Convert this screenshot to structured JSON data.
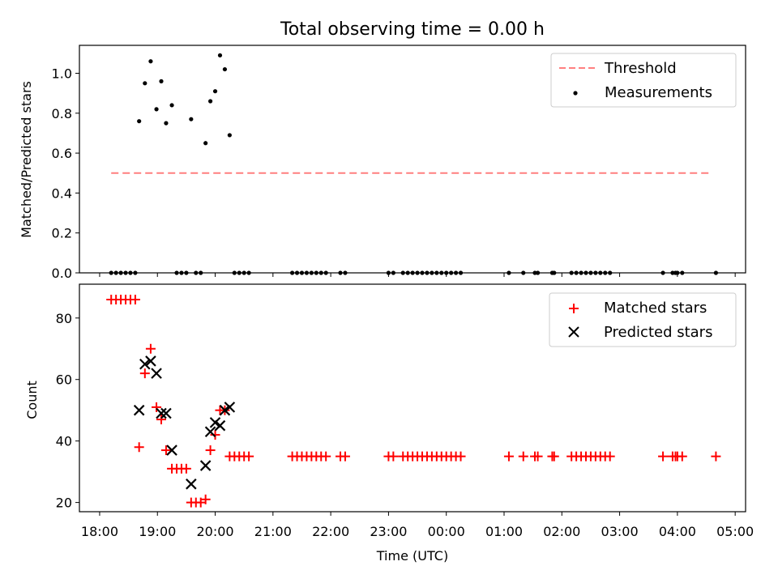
{
  "chart_data": [
    {
      "type": "scatter",
      "title": "Total observing time = 0.00 h",
      "xlabel": "",
      "ylabel": "Matched/Predicted stars",
      "xlim": [
        "18:00",
        "05:00"
      ],
      "ylim": [
        0,
        1.14
      ],
      "yticks": [
        "0.0",
        "0.2",
        "0.4",
        "0.6",
        "0.8",
        "1.0"
      ],
      "legend_position": "top-right",
      "legend": [
        "Threshold",
        "Measurements"
      ],
      "threshold": {
        "name": "Threshold",
        "y": 0.5,
        "x_range": [
          "18:12",
          "04:36"
        ],
        "color": "#ff7f7f",
        "style": "dashed"
      },
      "series": [
        {
          "name": "Measurements",
          "color": "#000000",
          "points": [
            [
              "18:12",
              0
            ],
            [
              "18:17",
              0
            ],
            [
              "18:22",
              0
            ],
            [
              "18:27",
              0
            ],
            [
              "18:32",
              0
            ],
            [
              "18:37",
              0
            ],
            [
              "18:41",
              0.76
            ],
            [
              "18:47",
              0.95
            ],
            [
              "18:53",
              1.06
            ],
            [
              "18:59",
              0.82
            ],
            [
              "19:04",
              0.96
            ],
            [
              "19:09",
              0.75
            ],
            [
              "19:15",
              0.84
            ],
            [
              "19:20",
              0
            ],
            [
              "19:25",
              0
            ],
            [
              "19:30",
              0
            ],
            [
              "19:35",
              0.77
            ],
            [
              "19:40",
              0
            ],
            [
              "19:45",
              0
            ],
            [
              "19:50",
              0.65
            ],
            [
              "19:55",
              0.86
            ],
            [
              "20:00",
              0.91
            ],
            [
              "20:05",
              1.09
            ],
            [
              "20:10",
              1.02
            ],
            [
              "20:15",
              0.69
            ],
            [
              "20:20",
              0
            ],
            [
              "20:25",
              0
            ],
            [
              "20:30",
              0
            ],
            [
              "20:35",
              0
            ],
            [
              "21:20",
              0
            ],
            [
              "21:25",
              0
            ],
            [
              "21:30",
              0
            ],
            [
              "21:35",
              0
            ],
            [
              "21:40",
              0
            ],
            [
              "21:45",
              0
            ],
            [
              "21:50",
              0
            ],
            [
              "21:55",
              0
            ],
            [
              "22:10",
              0
            ],
            [
              "22:15",
              0
            ],
            [
              "23:00",
              0
            ],
            [
              "23:05",
              0
            ],
            [
              "23:15",
              0
            ],
            [
              "23:20",
              0
            ],
            [
              "23:25",
              0
            ],
            [
              "23:30",
              0
            ],
            [
              "23:35",
              0
            ],
            [
              "23:40",
              0
            ],
            [
              "23:45",
              0
            ],
            [
              "23:50",
              0
            ],
            [
              "23:55",
              0
            ],
            [
              "00:00",
              0
            ],
            [
              "00:05",
              0
            ],
            [
              "00:10",
              0
            ],
            [
              "00:15",
              0
            ],
            [
              "01:05",
              0
            ],
            [
              "01:20",
              0
            ],
            [
              "01:32",
              0
            ],
            [
              "01:35",
              0
            ],
            [
              "01:50",
              0
            ],
            [
              "01:52",
              0
            ],
            [
              "02:10",
              0
            ],
            [
              "02:15",
              0
            ],
            [
              "02:20",
              0
            ],
            [
              "02:25",
              0
            ],
            [
              "02:30",
              0
            ],
            [
              "02:35",
              0
            ],
            [
              "02:40",
              0
            ],
            [
              "02:45",
              0
            ],
            [
              "02:50",
              0
            ],
            [
              "03:45",
              0
            ],
            [
              "03:55",
              0
            ],
            [
              "03:58",
              0
            ],
            [
              "04:00",
              0
            ],
            [
              "04:05",
              0
            ],
            [
              "04:40",
              0
            ]
          ]
        }
      ]
    },
    {
      "type": "scatter",
      "title": "",
      "xlabel": "Time (UTC)",
      "ylabel": "Count",
      "xlim": [
        "18:00",
        "05:00"
      ],
      "ylim": [
        17,
        91
      ],
      "yticks": [
        "20",
        "40",
        "60",
        "80"
      ],
      "xticks": [
        "18:00",
        "19:00",
        "20:00",
        "21:00",
        "22:00",
        "23:00",
        "00:00",
        "01:00",
        "02:00",
        "03:00",
        "04:00",
        "05:00"
      ],
      "legend_position": "top-right",
      "legend": [
        "Matched stars",
        "Predicted stars"
      ],
      "series": [
        {
          "name": "Matched stars",
          "marker": "plus",
          "color": "#ff0000",
          "points": [
            [
              "18:12",
              86
            ],
            [
              "18:17",
              86
            ],
            [
              "18:22",
              86
            ],
            [
              "18:27",
              86
            ],
            [
              "18:32",
              86
            ],
            [
              "18:37",
              86
            ],
            [
              "18:41",
              38
            ],
            [
              "18:47",
              62
            ],
            [
              "18:53",
              70
            ],
            [
              "18:59",
              51
            ],
            [
              "19:04",
              47
            ],
            [
              "19:09",
              37
            ],
            [
              "19:15",
              31
            ],
            [
              "19:20",
              31
            ],
            [
              "19:25",
              31
            ],
            [
              "19:30",
              31
            ],
            [
              "19:35",
              20
            ],
            [
              "19:40",
              20
            ],
            [
              "19:45",
              20
            ],
            [
              "19:50",
              21
            ],
            [
              "19:55",
              37
            ],
            [
              "20:00",
              42
            ],
            [
              "20:05",
              50
            ],
            [
              "20:10",
              50
            ],
            [
              "20:15",
              35
            ],
            [
              "20:20",
              35
            ],
            [
              "20:25",
              35
            ],
            [
              "20:30",
              35
            ],
            [
              "20:35",
              35
            ],
            [
              "21:20",
              35
            ],
            [
              "21:25",
              35
            ],
            [
              "21:30",
              35
            ],
            [
              "21:35",
              35
            ],
            [
              "21:40",
              35
            ],
            [
              "21:45",
              35
            ],
            [
              "21:50",
              35
            ],
            [
              "21:55",
              35
            ],
            [
              "22:10",
              35
            ],
            [
              "22:15",
              35
            ],
            [
              "23:00",
              35
            ],
            [
              "23:05",
              35
            ],
            [
              "23:15",
              35
            ],
            [
              "23:20",
              35
            ],
            [
              "23:25",
              35
            ],
            [
              "23:30",
              35
            ],
            [
              "23:35",
              35
            ],
            [
              "23:40",
              35
            ],
            [
              "23:45",
              35
            ],
            [
              "23:50",
              35
            ],
            [
              "23:55",
              35
            ],
            [
              "00:00",
              35
            ],
            [
              "00:05",
              35
            ],
            [
              "00:10",
              35
            ],
            [
              "00:15",
              35
            ],
            [
              "01:05",
              35
            ],
            [
              "01:20",
              35
            ],
            [
              "01:32",
              35
            ],
            [
              "01:35",
              35
            ],
            [
              "01:50",
              35
            ],
            [
              "01:52",
              35
            ],
            [
              "02:10",
              35
            ],
            [
              "02:15",
              35
            ],
            [
              "02:20",
              35
            ],
            [
              "02:25",
              35
            ],
            [
              "02:30",
              35
            ],
            [
              "02:35",
              35
            ],
            [
              "02:40",
              35
            ],
            [
              "02:45",
              35
            ],
            [
              "02:50",
              35
            ],
            [
              "03:45",
              35
            ],
            [
              "03:55",
              35
            ],
            [
              "03:58",
              35
            ],
            [
              "04:00",
              35
            ],
            [
              "04:05",
              35
            ],
            [
              "04:40",
              35
            ]
          ]
        },
        {
          "name": "Predicted stars",
          "marker": "x",
          "color": "#000000",
          "points": [
            [
              "18:41",
              50
            ],
            [
              "18:47",
              65
            ],
            [
              "18:53",
              66
            ],
            [
              "18:59",
              62
            ],
            [
              "19:04",
              49
            ],
            [
              "19:09",
              49
            ],
            [
              "19:15",
              37
            ],
            [
              "19:35",
              26
            ],
            [
              "19:50",
              32
            ],
            [
              "19:55",
              43
            ],
            [
              "20:00",
              46
            ],
            [
              "20:05",
              45
            ],
            [
              "20:10",
              50
            ],
            [
              "20:15",
              51
            ]
          ]
        }
      ]
    }
  ]
}
